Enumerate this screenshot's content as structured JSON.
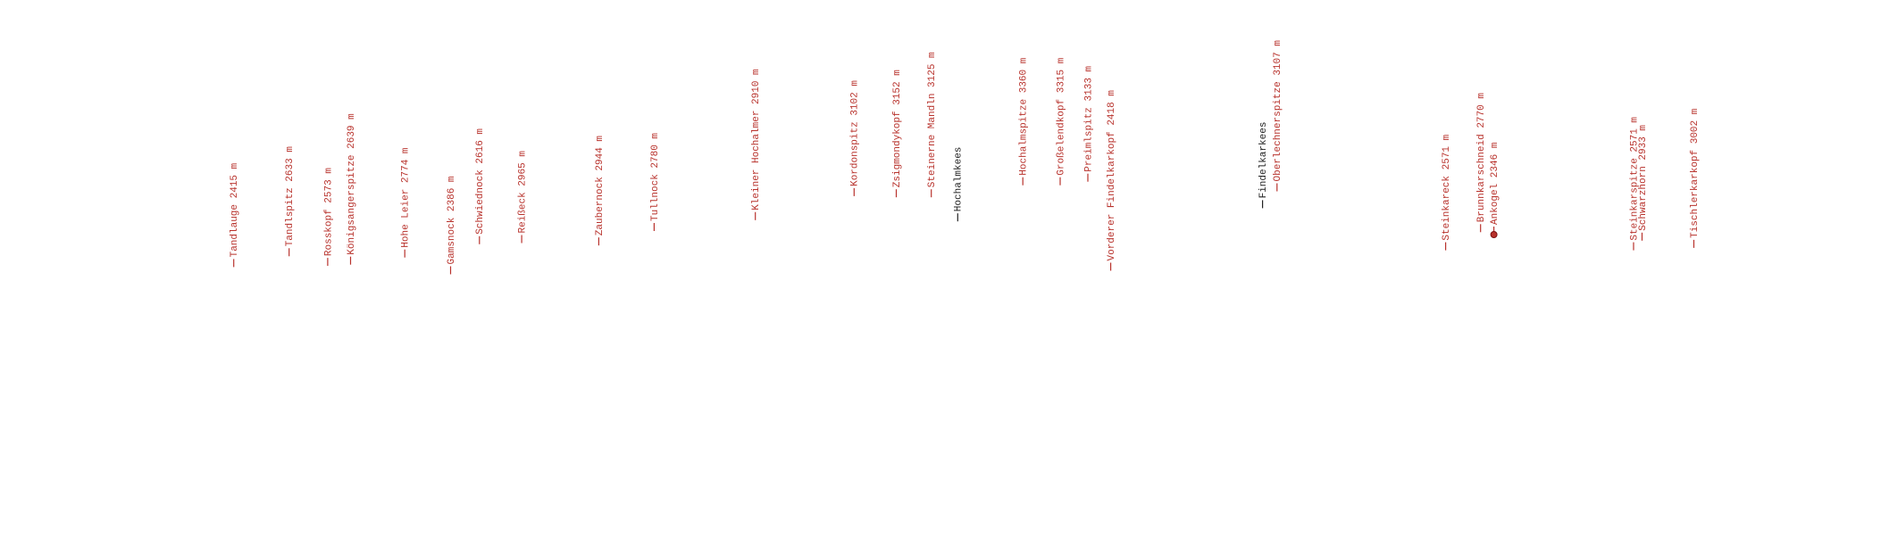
{
  "labels": [
    {
      "text": "Tandlauge 2415 m",
      "color": "#b8322c"
    },
    {
      "text": "Tandlspitz 2633 m",
      "color": "#b8322c"
    },
    {
      "text": "Rosskopf 2573 m",
      "color": "#b8322c"
    },
    {
      "text": "Königsangerspitze 2639 m",
      "color": "#b8322c"
    },
    {
      "text": "Hohe Leier 2774 m",
      "color": "#b8322c"
    },
    {
      "text": "Gamsnock 2386 m",
      "color": "#b8322c"
    },
    {
      "text": "Schwiednock 2616 m",
      "color": "#b8322c"
    },
    {
      "text": "Reißeck 2965 m",
      "color": "#b8322c"
    },
    {
      "text": "Zaubernock 2944 m",
      "color": "#b8322c"
    },
    {
      "text": "Tullnock 2780 m",
      "color": "#b8322c"
    },
    {
      "text": "Kleiner Hochalmer 2910 m",
      "color": "#b8322c"
    },
    {
      "text": "Kordonspitz 3102 m",
      "color": "#b8322c"
    },
    {
      "text": "Zsigmondykopf 3152 m",
      "color": "#b8322c"
    },
    {
      "text": "Steinerne Mandln 3125 m",
      "color": "#b8322c"
    },
    {
      "text": "Hochalmkees",
      "color": "#222222"
    },
    {
      "text": "Hochalmspitze 3360 m",
      "color": "#b8322c"
    },
    {
      "text": "Großelendkopf 3315 m",
      "color": "#b8322c"
    },
    {
      "text": "Preimlspitz 3133 m",
      "color": "#b8322c"
    },
    {
      "text": "Vorderer Findelkarkopf 2418 m",
      "color": "#b8322c"
    },
    {
      "text": "Findelkarkees",
      "color": "#222222"
    },
    {
      "text": "Oberlechnerspitze 3107 m",
      "color": "#b8322c"
    },
    {
      "text": "Steinkareck 2571 m",
      "color": "#b8322c"
    },
    {
      "text": "Brunnkarschneid 2770 m",
      "color": "#b8322c"
    },
    {
      "text": "Ankogel 2346 m",
      "color": "#b8322c",
      "highlighted": true
    },
    {
      "text": "Steinkarspitze 2571 m",
      "color": "#b8322c"
    },
    {
      "text": "Schwarzhorn 2933 m",
      "color": "#b8322c"
    },
    {
      "text": "Tischlerkarkopf 3002 m",
      "color": "#b8322c"
    }
  ]
}
